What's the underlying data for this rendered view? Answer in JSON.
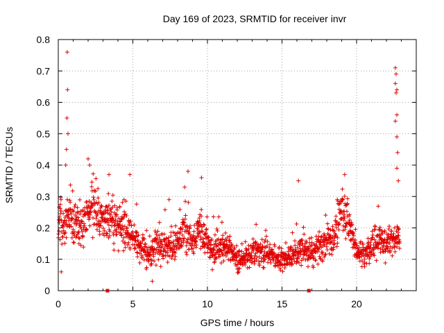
{
  "chart_data": {
    "type": "scatter",
    "title": "Day 169 of 2023, SRMTID for receiver invr",
    "xlabel": "GPS time / hours",
    "ylabel": "SRMTID / TECUs",
    "xlim": [
      0,
      24
    ],
    "ylim": [
      0,
      0.8
    ],
    "x_ticks": [
      0,
      5,
      10,
      15,
      20
    ],
    "y_ticks": [
      0,
      0.1,
      0.2,
      0.3,
      0.4,
      0.5,
      0.6,
      0.7,
      0.8
    ],
    "x_tick_labels": [
      "0",
      "5",
      "10",
      "15",
      "20"
    ],
    "y_tick_labels": [
      "0",
      "0.1",
      "0.2",
      "0.3",
      "0.4",
      "0.5",
      "0.6",
      "0.7",
      "0.8"
    ],
    "grid": true,
    "marker": "plus",
    "color": "#e00000",
    "gap_markers_x": [
      3.3,
      16.8
    ],
    "series": [
      {
        "name": "SRMTID",
        "profile_x": [
          0,
          0.3,
          0.6,
          1.0,
          1.5,
          2.0,
          2.5,
          3.0,
          3.5,
          4.0,
          4.5,
          5.0,
          5.5,
          6.0,
          6.5,
          7.0,
          7.5,
          8.0,
          8.5,
          9.0,
          9.5,
          10.0,
          10.5,
          11.0,
          11.5,
          12.0,
          12.5,
          13.0,
          13.5,
          14.0,
          14.5,
          15.0,
          15.5,
          16.0,
          16.5,
          17.0,
          17.5,
          18.0,
          18.5,
          19.0,
          19.5,
          20.0,
          20.5,
          21.0,
          21.5,
          22.0,
          22.5,
          22.9
        ],
        "profile_y": [
          0.22,
          0.21,
          0.24,
          0.22,
          0.2,
          0.25,
          0.26,
          0.22,
          0.24,
          0.2,
          0.2,
          0.17,
          0.14,
          0.11,
          0.14,
          0.15,
          0.14,
          0.16,
          0.2,
          0.14,
          0.2,
          0.15,
          0.13,
          0.14,
          0.13,
          0.1,
          0.1,
          0.13,
          0.12,
          0.12,
          0.11,
          0.1,
          0.11,
          0.12,
          0.13,
          0.12,
          0.14,
          0.15,
          0.18,
          0.26,
          0.22,
          0.12,
          0.12,
          0.14,
          0.17,
          0.15,
          0.17,
          0.16
        ],
        "peaks": [
          {
            "x": 0.6,
            "y": 0.76
          },
          {
            "x": 0.62,
            "y": 0.64
          },
          {
            "x": 0.58,
            "y": 0.55
          },
          {
            "x": 0.65,
            "y": 0.5
          },
          {
            "x": 0.55,
            "y": 0.45
          },
          {
            "x": 0.5,
            "y": 0.4
          },
          {
            "x": 2.0,
            "y": 0.42
          },
          {
            "x": 2.1,
            "y": 0.4
          },
          {
            "x": 3.4,
            "y": 0.37
          },
          {
            "x": 4.8,
            "y": 0.37
          },
          {
            "x": 8.7,
            "y": 0.38
          },
          {
            "x": 9.6,
            "y": 0.36
          },
          {
            "x": 16.1,
            "y": 0.35
          },
          {
            "x": 19.2,
            "y": 0.37
          },
          {
            "x": 22.6,
            "y": 0.71
          },
          {
            "x": 22.65,
            "y": 0.69
          },
          {
            "x": 22.6,
            "y": 0.66
          },
          {
            "x": 22.7,
            "y": 0.64
          },
          {
            "x": 22.65,
            "y": 0.63
          },
          {
            "x": 22.7,
            "y": 0.56
          },
          {
            "x": 22.6,
            "y": 0.54
          },
          {
            "x": 22.7,
            "y": 0.49
          },
          {
            "x": 22.75,
            "y": 0.44
          },
          {
            "x": 22.7,
            "y": 0.39
          },
          {
            "x": 22.8,
            "y": 0.35
          },
          {
            "x": 0.2,
            "y": 0.06
          },
          {
            "x": 6.3,
            "y": 0.03
          },
          {
            "x": 12.1,
            "y": 0.06
          }
        ]
      }
    ]
  }
}
